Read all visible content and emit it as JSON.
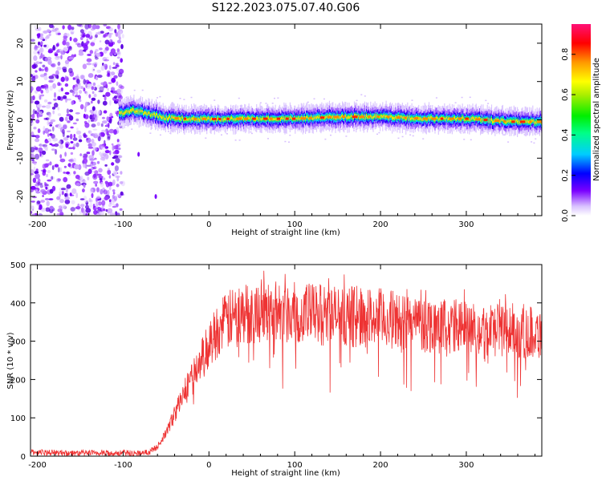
{
  "title": "S122.2023.075.07.40.G06",
  "chart_data": [
    {
      "type": "heatmap",
      "xlabel": "Height of straight line (km)",
      "ylabel": "Frequency (Hz)",
      "xlim": [
        -208,
        388
      ],
      "ylim": [
        -25,
        25
      ],
      "xticks": [
        -200,
        -100,
        0,
        100,
        200,
        300
      ],
      "yticks": [
        -20,
        -10,
        0,
        10,
        20
      ],
      "colorbar": {
        "label": "Normalized spectral amplitude",
        "range": [
          0,
          0.95
        ],
        "ticks": [
          0.0,
          0.2,
          0.4,
          0.6,
          0.8
        ]
      },
      "ridge": {
        "x": [
          -105,
          -90,
          -70,
          -50,
          -30,
          0,
          50,
          100,
          150,
          200,
          250,
          300,
          350,
          388
        ],
        "frequency_hz": [
          1.5,
          2.5,
          1.5,
          0.5,
          0.3,
          0.2,
          0.3,
          0.3,
          0.8,
          0.8,
          0.3,
          0.3,
          -0.5,
          -0.5
        ]
      },
      "noise_region_x": [
        -208,
        -100
      ]
    },
    {
      "type": "line",
      "xlabel": "Height of straight line (km)",
      "ylabel": "SNR (10 * v/v)",
      "xlim": [
        -208,
        388
      ],
      "ylim": [
        0,
        500
      ],
      "xticks": [
        -200,
        -100,
        0,
        100,
        200,
        300
      ],
      "yticks": [
        0,
        100,
        200,
        300,
        400,
        500
      ],
      "color": "#ee3333",
      "series": [
        {
          "x": [
            -208,
            -180,
            -150,
            -120,
            -80,
            -70,
            -60,
            -50,
            -40,
            -30,
            -20,
            -10,
            0,
            10,
            20,
            30,
            50,
            70,
            100,
            130,
            160,
            200,
            250,
            300,
            350,
            388
          ],
          "values": [
            10,
            9,
            8,
            8,
            8,
            10,
            25,
            60,
            110,
            160,
            200,
            245,
            290,
            330,
            350,
            365,
            375,
            380,
            375,
            370,
            365,
            360,
            345,
            335,
            330,
            320
          ]
        }
      ]
    }
  ]
}
